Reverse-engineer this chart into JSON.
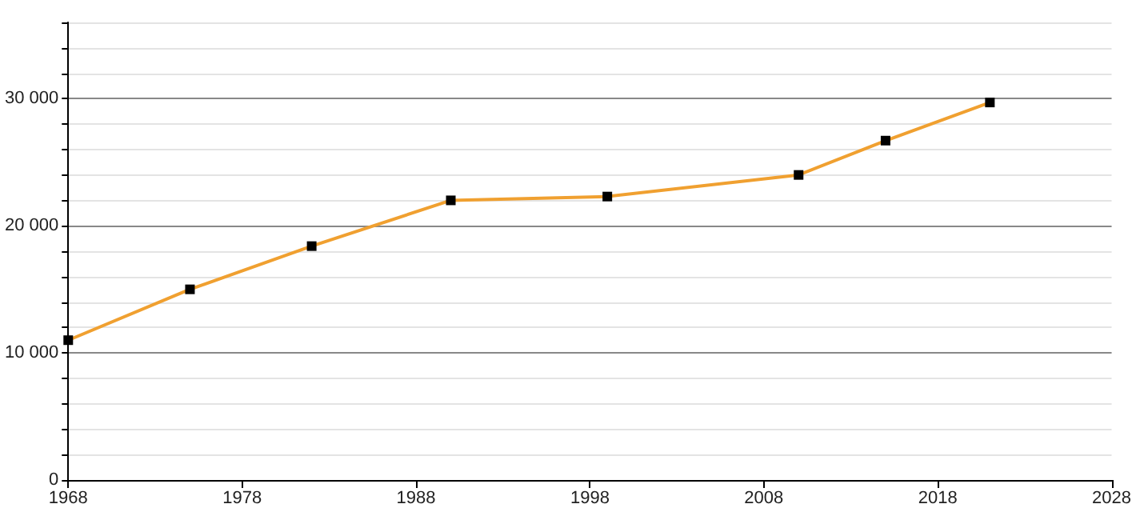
{
  "chart_data": {
    "type": "line",
    "x": [
      1968,
      1975,
      1982,
      1990,
      1999,
      2010,
      2015,
      2021
    ],
    "series": [
      {
        "color": "#f0a030",
        "values": [
          11000,
          15000,
          18400,
          22000,
          22300,
          24000,
          26700,
          29700
        ]
      }
    ],
    "xlim": [
      1968,
      2028
    ],
    "xticks": [
      1968,
      1978,
      1988,
      1998,
      2008,
      2018,
      2028
    ],
    "ylim": [
      0,
      36000
    ],
    "yticks": [
      0,
      {
        "value": 2000,
        "label": null
      },
      {
        "value": 4000,
        "label": null
      },
      {
        "value": 6000,
        "label": null
      },
      {
        "value": 8000,
        "label": null
      },
      {
        "value": 10000,
        "label": "10 000"
      },
      {
        "value": 12000,
        "label": null
      },
      {
        "value": 14000,
        "label": null
      },
      {
        "value": 16000,
        "label": null
      },
      {
        "value": 18000,
        "label": null
      },
      {
        "value": 20000,
        "label": "20 000"
      },
      {
        "value": 22000,
        "label": null
      },
      {
        "value": 24000,
        "label": null
      },
      {
        "value": 26000,
        "label": null
      },
      {
        "value": 28000,
        "label": null
      },
      {
        "value": 30000,
        "label": "30 000"
      },
      {
        "value": 32000,
        "label": null
      },
      {
        "value": 34000,
        "label": null
      },
      {
        "value": 36000,
        "label": null
      }
    ],
    "grid": "y",
    "marker": "square",
    "line_style": "solid"
  }
}
